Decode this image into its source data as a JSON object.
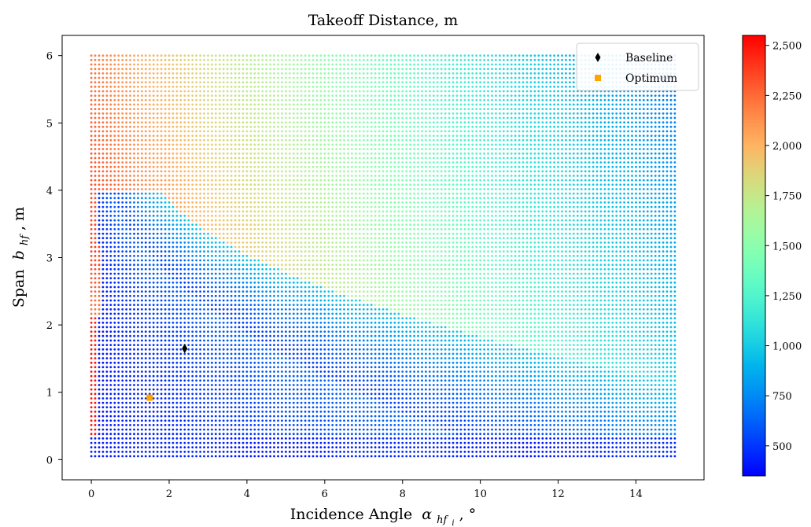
{
  "chart_data": {
    "type": "scatter",
    "title": "Takeoff Distance, m",
    "xlabel": "Incidence Angle",
    "xlabel_symbol": "α",
    "xlabel_subscript": "hf",
    "xlabel_sub_subscript": "i",
    "xlabel_unit": ", °",
    "ylabel": "Span",
    "ylabel_symbol": "b",
    "ylabel_subscript": "hf",
    "ylabel_unit": ", m",
    "xlim": [
      -0.75,
      15.75
    ],
    "ylim": [
      -0.3,
      6.3
    ],
    "x_ticks": [
      0,
      2,
      4,
      6,
      8,
      10,
      12,
      14
    ],
    "y_ticks": [
      0,
      1,
      2,
      3,
      4,
      5,
      6
    ],
    "grid": false,
    "grid_sweep": {
      "x_range": [
        0,
        15
      ],
      "x_steps": 150,
      "y_range": [
        0.05,
        6.0
      ],
      "y_steps": 90,
      "description_of_field": "takeoff distance over incidence angle and span"
    },
    "markers": [
      {
        "name": "Baseline",
        "x": 2.4,
        "y": 1.65,
        "color": "#000000",
        "shape": "diamond"
      },
      {
        "name": "Optimum",
        "x": 1.5,
        "y": 0.92,
        "color": "#ffa500",
        "shape": "square"
      }
    ],
    "legend": {
      "placement": "top-right",
      "entries": [
        "Baseline",
        "Optimum"
      ]
    },
    "colorbar": {
      "range": [
        350,
        2550
      ],
      "ticks": [
        500,
        750,
        1000,
        1250,
        1500,
        1750,
        2000,
        2250,
        2500
      ],
      "tick_labels": [
        "500",
        "750",
        "1,000",
        "1,250",
        "1,500",
        "1,750",
        "2,000",
        "2,250",
        "2,500"
      ],
      "colormap": "rainbow"
    }
  }
}
